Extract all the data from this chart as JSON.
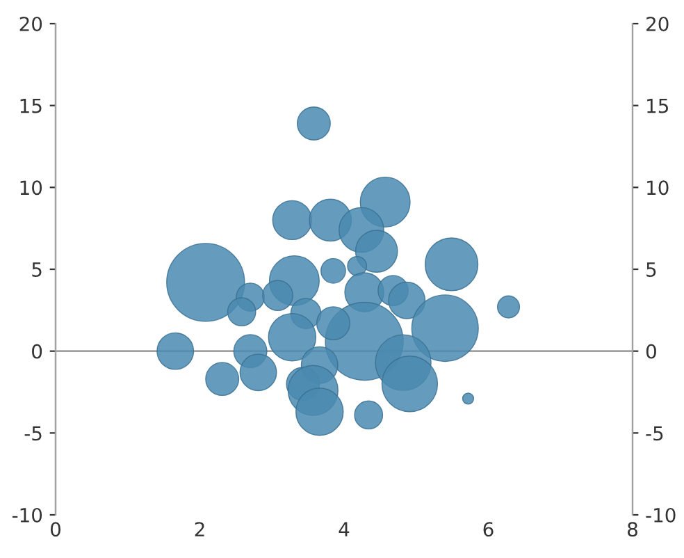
{
  "chart_data": {
    "type": "bubble",
    "color": "#4a8ab0",
    "x": [
      3.58,
      2.08,
      3.28,
      3.81,
      4.57,
      4.24,
      4.45,
      5.49,
      3.85,
      4.18,
      3.31,
      2.7,
      3.08,
      2.58,
      4.28,
      4.68,
      4.87,
      5.4,
      6.28,
      1.66,
      2.7,
      2.81,
      2.31,
      3.47,
      3.28,
      4.28,
      3.66,
      3.43,
      3.57,
      3.66,
      4.34,
      4.82,
      4.91,
      5.72,
      3.85
    ],
    "values": [
      13.9,
      4.2,
      8.0,
      8.0,
      9.1,
      7.4,
      6.1,
      5.3,
      4.9,
      5.2,
      4.3,
      3.3,
      3.4,
      2.4,
      3.6,
      3.7,
      3.1,
      1.4,
      2.7,
      0.0,
      0.0,
      -1.3,
      -1.7,
      2.3,
      0.85,
      0.6,
      -0.85,
      -2.0,
      -2.4,
      -3.7,
      -3.9,
      -0.7,
      -2.0,
      -2.9,
      1.7
    ],
    "sizes": [
      0.18,
      1,
      0.25,
      0.29,
      0.41,
      0.33,
      0.29,
      0.46,
      0.1,
      0.06,
      0.41,
      0.13,
      0.15,
      0.13,
      0.25,
      0.15,
      0.22,
      0.73,
      0.08,
      0.22,
      0.18,
      0.22,
      0.18,
      0.15,
      0.37,
      1,
      0.22,
      0.18,
      0.41,
      0.37,
      0.13,
      0.51,
      0.51,
      0.02,
      0.18
    ],
    "xlim": [
      0,
      8
    ],
    "xticks": [
      0,
      2,
      4,
      6,
      8
    ],
    "ylim": [
      -10,
      20
    ],
    "yticks": [
      -10,
      -5,
      0,
      5,
      10,
      15,
      20
    ],
    "y2lim": [
      -10,
      20
    ],
    "y2ticks": [
      -10,
      -5,
      0,
      5,
      10,
      15,
      20
    ],
    "ref_lines": [
      {
        "axis": "y",
        "value": 0,
        "color": "#a0a0a0"
      }
    ],
    "grid": false,
    "legend": false
  }
}
